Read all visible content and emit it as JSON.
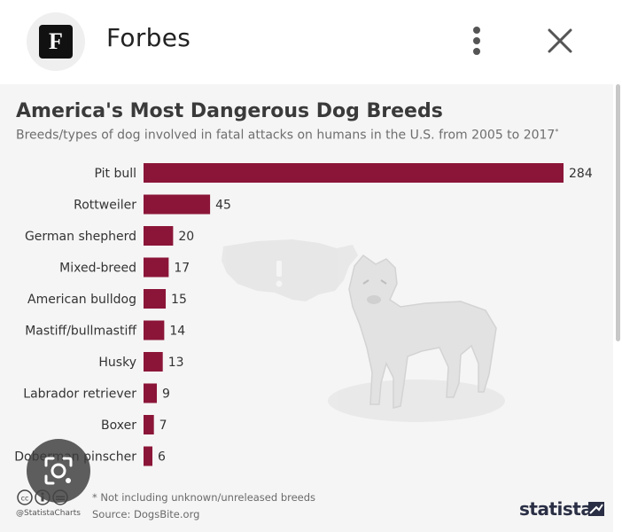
{
  "header": {
    "app_icon_letter": "F",
    "app_name": "Forbes",
    "more_icon": "more-vert-icon",
    "close_icon": "close-icon"
  },
  "colors": {
    "bar": "#8b1538",
    "background": "#f5f5f5",
    "brand": "#2a2f45"
  },
  "chart_data": {
    "type": "bar",
    "orientation": "horizontal",
    "title": "America's Most Dangerous Dog Breeds",
    "subtitle": "Breeds/types of dog involved in fatal attacks on humans in the U.S. from 2005 to 2017",
    "subtitle_mark": "*",
    "categories": [
      "Pit bull",
      "Rottweiler",
      "German shepherd",
      "Mixed-breed",
      "American bulldog",
      "Mastiff/bullmastiff",
      "Husky",
      "Labrador retriever",
      "Boxer",
      "Doberman pinscher"
    ],
    "values": [
      284,
      45,
      20,
      17,
      15,
      14,
      13,
      9,
      7,
      6
    ],
    "xlim": [
      0,
      284
    ],
    "grid": false,
    "legend": "none"
  },
  "footer": {
    "footnote": "* Not including unknown/unreleased breeds",
    "source": "Source: DogsBite.org",
    "handle": "@StatistaCharts",
    "brand": "statista",
    "brand_icon": "statista-logo-icon",
    "license_icons": "creative-commons-icon"
  },
  "overlay": {
    "lens_icon": "google-lens-icon"
  }
}
